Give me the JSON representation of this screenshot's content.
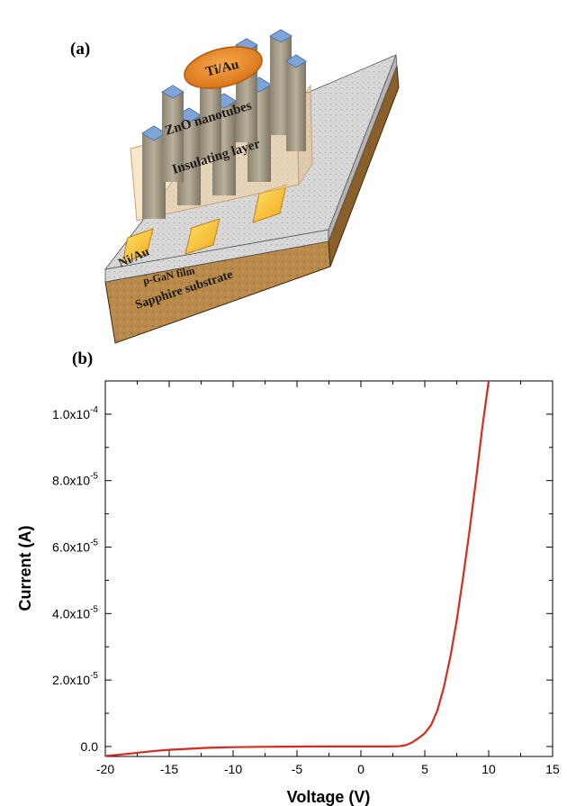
{
  "panel_a": {
    "label": "(a)",
    "layers": {
      "top_contact": "Ti/Au",
      "nanotubes": "ZnO nanotubes",
      "insulating": "Insulating layer",
      "bottom_contact": "Ni/Au",
      "film": "p-GaN film",
      "substrate": "Sapphire substrate"
    }
  },
  "panel_b": {
    "label": "(b)"
  },
  "chart_data": {
    "type": "line",
    "title": "",
    "xlabel": "Voltage (V)",
    "ylabel": "Current (A)",
    "xlim": [
      -20,
      15
    ],
    "ylim": [
      -3e-06,
      0.00011
    ],
    "xticks": [
      -20,
      -15,
      -10,
      -5,
      0,
      5,
      10,
      15
    ],
    "xtick_labels": [
      "-20",
      "-15",
      "-10",
      "-5",
      "0",
      "5",
      "10",
      "15"
    ],
    "yticks": [
      0,
      2e-05,
      4e-05,
      6e-05,
      8e-05,
      0.0001
    ],
    "ytick_labels": [
      {
        "mant": "0.0",
        "exp": ""
      },
      {
        "mant": "2.0x10",
        "exp": "-5"
      },
      {
        "mant": "4.0x10",
        "exp": "-5"
      },
      {
        "mant": "6.0x10",
        "exp": "-5"
      },
      {
        "mant": "8.0x10",
        "exp": "-5"
      },
      {
        "mant": "1.0x10",
        "exp": "-4"
      }
    ],
    "series": [
      {
        "color": "#d62b1f",
        "x": [
          -20,
          -19,
          -18,
          -17,
          -16,
          -15,
          -14,
          -13,
          -12,
          -11,
          -10,
          -8,
          -6,
          -4,
          -2,
          0,
          2,
          3,
          3.5,
          4,
          4.5,
          5,
          5.5,
          6,
          6.5,
          7,
          7.5,
          8,
          8.5,
          9,
          9.5,
          10
        ],
        "y": [
          -2.8e-06,
          -2.5e-06,
          -2.1e-06,
          -1.7e-06,
          -1.3e-06,
          -1e-06,
          -8e-07,
          -6e-07,
          -4e-07,
          -3e-07,
          -2e-07,
          -1e-07,
          -5e-08,
          0,
          0,
          0,
          0,
          1e-07,
          4e-07,
          1.2e-06,
          2.5e-06,
          4e-06,
          6.5e-06,
          1.1e-05,
          1.8e-05,
          2.7e-05,
          3.8e-05,
          5.1e-05,
          6.5e-05,
          8e-05,
          9.6e-05,
          0.000111
        ]
      }
    ]
  }
}
